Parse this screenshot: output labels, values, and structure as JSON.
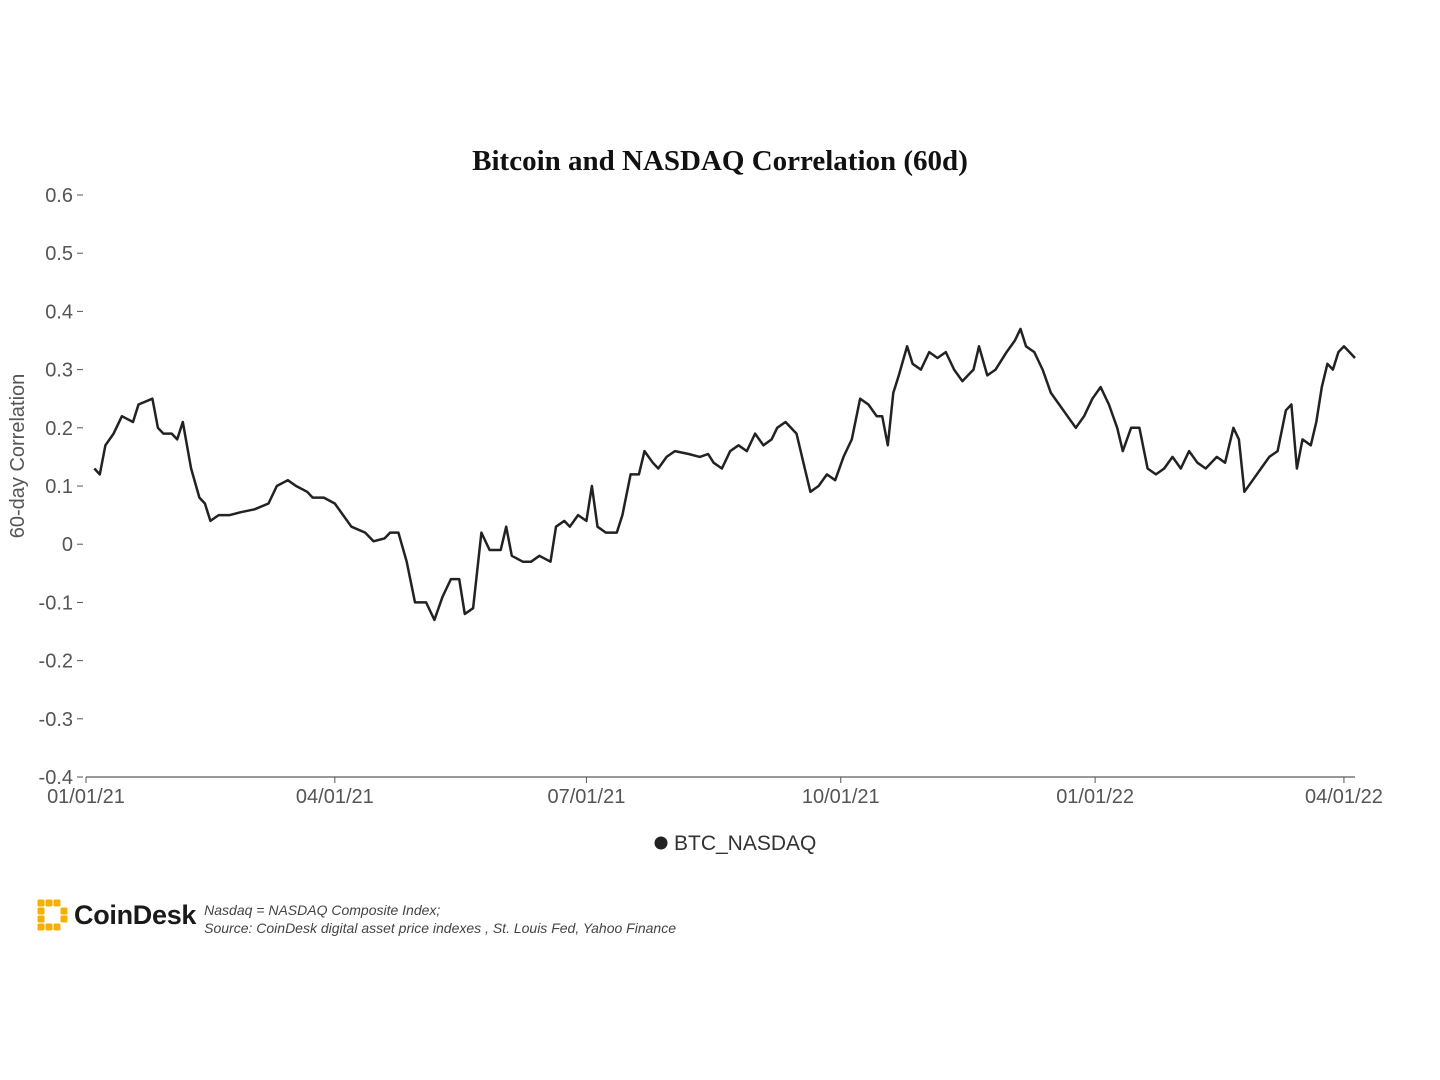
{
  "chart_data": {
    "type": "line",
    "title": "Bitcoin and NASDAQ Correlation (60d)",
    "xlabel": "",
    "ylabel": "60-day Correlation",
    "ylim": [
      -0.4,
      0.6
    ],
    "xlim": [
      "2021-01-01",
      "2022-04-05"
    ],
    "yticks": [
      0.6,
      0.5,
      0.4,
      0.3,
      0.2,
      0.1,
      0,
      -0.1,
      -0.2,
      -0.3,
      -0.4
    ],
    "ytick_labels": [
      "0.6",
      "0.5",
      "0.4",
      "0.3",
      "0.2",
      "0.1",
      "0",
      "-0.1",
      "-0.2",
      "-0.3",
      "-0.4"
    ],
    "xticks": [
      "2021-01-01",
      "2021-04-01",
      "2021-07-01",
      "2021-10-01",
      "2022-01-01",
      "2022-04-01"
    ],
    "xtick_labels": [
      "01/01/21",
      "04/01/21",
      "07/01/21",
      "10/01/21",
      "01/01/22",
      "04/01/22"
    ],
    "grid": false,
    "legend_position": "bottom-center",
    "series": [
      {
        "name": "BTC_NASDAQ",
        "color": "#222222",
        "points": [
          [
            "2021-01-04",
            0.13
          ],
          [
            "2021-01-06",
            0.12
          ],
          [
            "2021-01-08",
            0.17
          ],
          [
            "2021-01-11",
            0.19
          ],
          [
            "2021-01-14",
            0.22
          ],
          [
            "2021-01-18",
            0.21
          ],
          [
            "2021-01-20",
            0.24
          ],
          [
            "2021-01-25",
            0.25
          ],
          [
            "2021-01-27",
            0.2
          ],
          [
            "2021-01-29",
            0.19
          ],
          [
            "2021-02-01",
            0.19
          ],
          [
            "2021-02-03",
            0.18
          ],
          [
            "2021-02-05",
            0.21
          ],
          [
            "2021-02-08",
            0.13
          ],
          [
            "2021-02-11",
            0.08
          ],
          [
            "2021-02-13",
            0.07
          ],
          [
            "2021-02-15",
            0.04
          ],
          [
            "2021-02-18",
            0.05
          ],
          [
            "2021-02-22",
            0.05
          ],
          [
            "2021-02-26",
            0.055
          ],
          [
            "2021-03-03",
            0.06
          ],
          [
            "2021-03-08",
            0.07
          ],
          [
            "2021-03-11",
            0.1
          ],
          [
            "2021-03-15",
            0.11
          ],
          [
            "2021-03-18",
            0.1
          ],
          [
            "2021-03-22",
            0.09
          ],
          [
            "2021-03-24",
            0.08
          ],
          [
            "2021-03-28",
            0.08
          ],
          [
            "2021-04-01",
            0.07
          ],
          [
            "2021-04-04",
            0.05
          ],
          [
            "2021-04-07",
            0.03
          ],
          [
            "2021-04-12",
            0.02
          ],
          [
            "2021-04-15",
            0.005
          ],
          [
            "2021-04-19",
            0.01
          ],
          [
            "2021-04-21",
            0.02
          ],
          [
            "2021-04-24",
            0.02
          ],
          [
            "2021-04-27",
            -0.03
          ],
          [
            "2021-04-30",
            -0.1
          ],
          [
            "2021-05-04",
            -0.1
          ],
          [
            "2021-05-07",
            -0.13
          ],
          [
            "2021-05-10",
            -0.09
          ],
          [
            "2021-05-13",
            -0.06
          ],
          [
            "2021-05-16",
            -0.06
          ],
          [
            "2021-05-18",
            -0.12
          ],
          [
            "2021-05-21",
            -0.11
          ],
          [
            "2021-05-24",
            0.02
          ],
          [
            "2021-05-27",
            -0.01
          ],
          [
            "2021-05-31",
            -0.01
          ],
          [
            "2021-06-02",
            0.03
          ],
          [
            "2021-06-04",
            -0.02
          ],
          [
            "2021-06-08",
            -0.03
          ],
          [
            "2021-06-11",
            -0.03
          ],
          [
            "2021-06-14",
            -0.02
          ],
          [
            "2021-06-18",
            -0.03
          ],
          [
            "2021-06-20",
            0.03
          ],
          [
            "2021-06-23",
            0.04
          ],
          [
            "2021-06-25",
            0.03
          ],
          [
            "2021-06-28",
            0.05
          ],
          [
            "2021-07-01",
            0.04
          ],
          [
            "2021-07-03",
            0.1
          ],
          [
            "2021-07-05",
            0.03
          ],
          [
            "2021-07-08",
            0.02
          ],
          [
            "2021-07-12",
            0.02
          ],
          [
            "2021-07-14",
            0.05
          ],
          [
            "2021-07-17",
            0.12
          ],
          [
            "2021-07-20",
            0.12
          ],
          [
            "2021-07-22",
            0.16
          ],
          [
            "2021-07-25",
            0.14
          ],
          [
            "2021-07-27",
            0.13
          ],
          [
            "2021-07-30",
            0.15
          ],
          [
            "2021-08-02",
            0.16
          ],
          [
            "2021-08-07",
            0.155
          ],
          [
            "2021-08-11",
            0.15
          ],
          [
            "2021-08-14",
            0.155
          ],
          [
            "2021-08-16",
            0.14
          ],
          [
            "2021-08-19",
            0.13
          ],
          [
            "2021-08-22",
            0.16
          ],
          [
            "2021-08-25",
            0.17
          ],
          [
            "2021-08-28",
            0.16
          ],
          [
            "2021-08-31",
            0.19
          ],
          [
            "2021-09-03",
            0.17
          ],
          [
            "2021-09-06",
            0.18
          ],
          [
            "2021-09-08",
            0.2
          ],
          [
            "2021-09-11",
            0.21
          ],
          [
            "2021-09-15",
            0.19
          ],
          [
            "2021-09-18",
            0.13
          ],
          [
            "2021-09-20",
            0.09
          ],
          [
            "2021-09-23",
            0.1
          ],
          [
            "2021-09-26",
            0.12
          ],
          [
            "2021-09-29",
            0.11
          ],
          [
            "2021-10-02",
            0.15
          ],
          [
            "2021-10-05",
            0.18
          ],
          [
            "2021-10-08",
            0.25
          ],
          [
            "2021-10-11",
            0.24
          ],
          [
            "2021-10-14",
            0.22
          ],
          [
            "2021-10-16",
            0.22
          ],
          [
            "2021-10-18",
            0.17
          ],
          [
            "2021-10-20",
            0.26
          ],
          [
            "2021-10-22",
            0.29
          ],
          [
            "2021-10-25",
            0.34
          ],
          [
            "2021-10-27",
            0.31
          ],
          [
            "2021-10-30",
            0.3
          ],
          [
            "2021-11-02",
            0.33
          ],
          [
            "2021-11-05",
            0.32
          ],
          [
            "2021-11-08",
            0.33
          ],
          [
            "2021-11-11",
            0.3
          ],
          [
            "2021-11-14",
            0.28
          ],
          [
            "2021-11-16",
            0.29
          ],
          [
            "2021-11-18",
            0.3
          ],
          [
            "2021-11-20",
            0.34
          ],
          [
            "2021-11-23",
            0.29
          ],
          [
            "2021-11-26",
            0.3
          ],
          [
            "2021-11-30",
            0.33
          ],
          [
            "2021-12-03",
            0.35
          ],
          [
            "2021-12-05",
            0.37
          ],
          [
            "2021-12-07",
            0.34
          ],
          [
            "2021-12-10",
            0.33
          ],
          [
            "2021-12-13",
            0.3
          ],
          [
            "2021-12-16",
            0.26
          ],
          [
            "2021-12-19",
            0.24
          ],
          [
            "2021-12-22",
            0.22
          ],
          [
            "2021-12-25",
            0.2
          ],
          [
            "2021-12-28",
            0.22
          ],
          [
            "2021-12-31",
            0.25
          ],
          [
            "2022-01-03",
            0.27
          ],
          [
            "2022-01-06",
            0.24
          ],
          [
            "2022-01-09",
            0.2
          ],
          [
            "2022-01-11",
            0.16
          ],
          [
            "2022-01-14",
            0.2
          ],
          [
            "2022-01-17",
            0.2
          ],
          [
            "2022-01-20",
            0.13
          ],
          [
            "2022-01-23",
            0.12
          ],
          [
            "2022-01-26",
            0.13
          ],
          [
            "2022-01-29",
            0.15
          ],
          [
            "2022-02-01",
            0.13
          ],
          [
            "2022-02-04",
            0.16
          ],
          [
            "2022-02-07",
            0.14
          ],
          [
            "2022-02-10",
            0.13
          ],
          [
            "2022-02-14",
            0.15
          ],
          [
            "2022-02-17",
            0.14
          ],
          [
            "2022-02-20",
            0.2
          ],
          [
            "2022-02-22",
            0.18
          ],
          [
            "2022-02-24",
            0.09
          ],
          [
            "2022-02-27",
            0.11
          ],
          [
            "2022-03-02",
            0.13
          ],
          [
            "2022-03-05",
            0.15
          ],
          [
            "2022-03-08",
            0.16
          ],
          [
            "2022-03-11",
            0.23
          ],
          [
            "2022-03-13",
            0.24
          ],
          [
            "2022-03-15",
            0.13
          ],
          [
            "2022-03-17",
            0.18
          ],
          [
            "2022-03-20",
            0.17
          ],
          [
            "2022-03-22",
            0.21
          ],
          [
            "2022-03-24",
            0.27
          ],
          [
            "2022-03-26",
            0.31
          ],
          [
            "2022-03-28",
            0.3
          ],
          [
            "2022-03-30",
            0.33
          ],
          [
            "2022-04-01",
            0.34
          ],
          [
            "2022-04-03",
            0.33
          ],
          [
            "2022-04-05",
            0.32
          ]
        ]
      }
    ]
  },
  "footer": {
    "brand": "CoinDesk",
    "note_line1": "Nasdaq = NASDAQ Composite Index;",
    "note_line2": "Source: CoinDesk digital asset price indexes , St. Louis Fed, Yahoo Finance",
    "brand_color": "#f5b000"
  }
}
